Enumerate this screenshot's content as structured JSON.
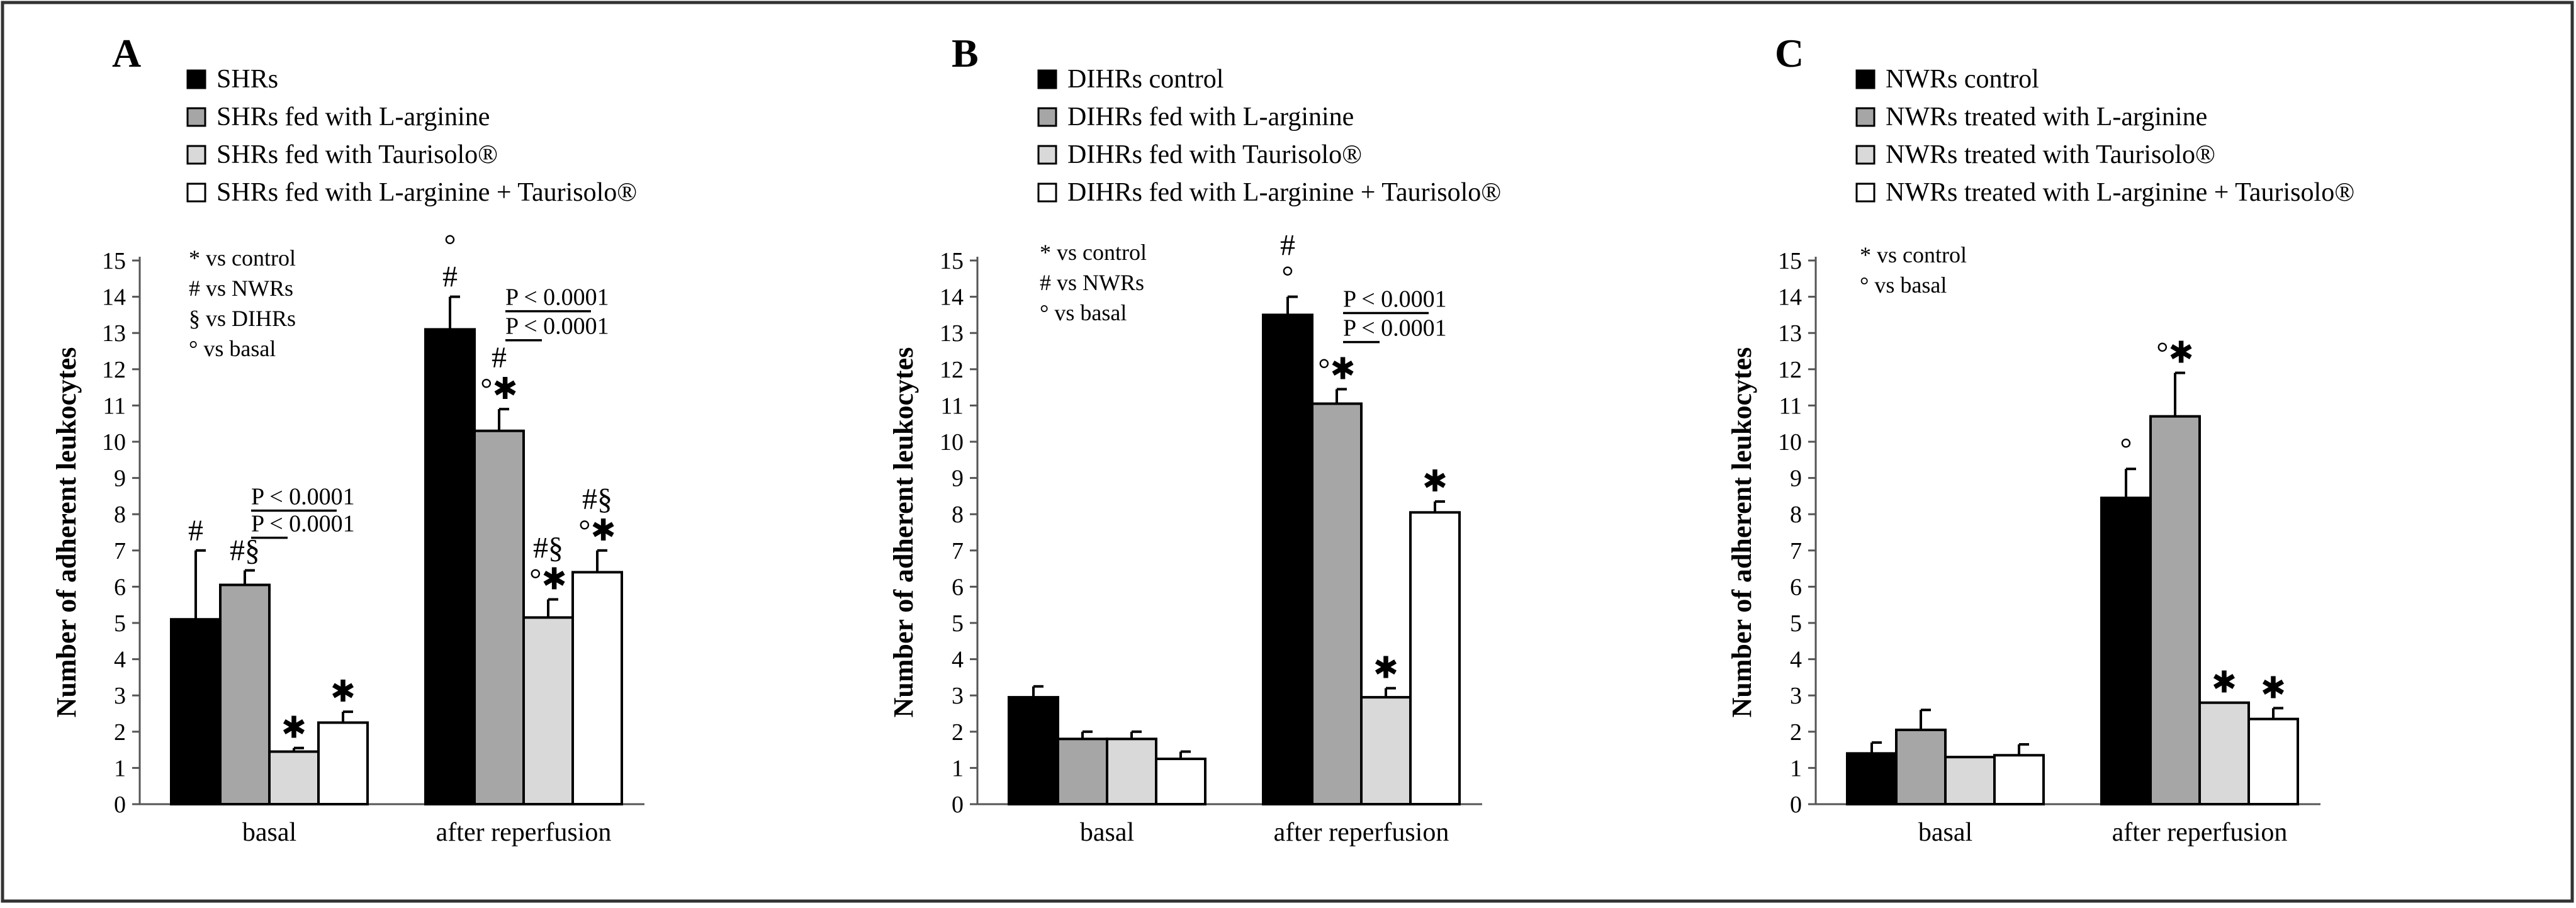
{
  "figure": {
    "colors": {
      "border": "#333333",
      "background": "#ffffff"
    }
  },
  "chart_data": [
    {
      "type": "bar",
      "panel": "A",
      "ylabel": "Number of adherent leukocytes",
      "ylim": [
        0,
        15
      ],
      "yticks": [
        0,
        1,
        2,
        3,
        4,
        5,
        6,
        7,
        8,
        9,
        10,
        11,
        12,
        13,
        14,
        15
      ],
      "categories": [
        "basal",
        "after reperfusion"
      ],
      "series": [
        {
          "name": "SHRs",
          "color": "#000000",
          "values": [
            5.1,
            13.1
          ],
          "errors": [
            1.9,
            0.9
          ],
          "annotations": [
            "#",
            "°\n#"
          ]
        },
        {
          "name": "SHRs fed with L-arginine",
          "color": "#a6a6a6",
          "values": [
            6.05,
            10.3
          ],
          "errors": [
            0.4,
            0.6
          ],
          "annotations": [
            "#§",
            "#\n°✱"
          ]
        },
        {
          "name": "SHRs fed with Taurisolo®",
          "color": "#d9d9d9",
          "values": [
            1.45,
            5.15
          ],
          "errors": [
            0.1,
            0.5
          ],
          "annotations": [
            "✱",
            "#§\n°✱"
          ]
        },
        {
          "name": "SHRs fed with L-arginine + Taurisolo®",
          "color": "#ffffff",
          "values": [
            2.25,
            6.4
          ],
          "errors": [
            0.3,
            0.6
          ],
          "annotations": [
            "✱",
            "#§\n°✱"
          ]
        }
      ],
      "notes": [
        "* vs control",
        "# vs NWRs",
        "§ vs DIHRs",
        "° vs basal"
      ],
      "pvalues": [
        {
          "label": "P < 0.0001",
          "category": 0,
          "from_series": 1,
          "to_series": 3,
          "y": 8.1
        },
        {
          "label": "P < 0.0001",
          "category": 0,
          "from_series": 1,
          "to_series": 2,
          "y": 7.35
        },
        {
          "label": "P < 0.0001",
          "category": 1,
          "from_series": 1,
          "to_series": 3,
          "y": 13.6
        },
        {
          "label": "P < 0.0001",
          "category": 1,
          "from_series": 1,
          "to_series": 2,
          "y": 12.8
        }
      ]
    },
    {
      "type": "bar",
      "panel": "B",
      "ylabel": "Number of adherent leukocytes",
      "ylim": [
        0,
        15
      ],
      "yticks": [
        0,
        1,
        2,
        3,
        4,
        5,
        6,
        7,
        8,
        9,
        10,
        11,
        12,
        13,
        14,
        15
      ],
      "categories": [
        "basal",
        "after reperfusion"
      ],
      "series": [
        {
          "name": "DIHRs control",
          "color": "#000000",
          "values": [
            2.95,
            13.5
          ],
          "errors": [
            0.3,
            0.5
          ],
          "annotations": [
            "",
            "#\n°"
          ]
        },
        {
          "name": "DIHRs fed with L-arginine",
          "color": "#a6a6a6",
          "values": [
            1.8,
            11.05
          ],
          "errors": [
            0.2,
            0.4
          ],
          "annotations": [
            "",
            "°✱"
          ]
        },
        {
          "name": "DIHRs fed with  Taurisolo®",
          "color": "#d9d9d9",
          "values": [
            1.8,
            2.95
          ],
          "errors": [
            0.2,
            0.25
          ],
          "annotations": [
            "",
            "✱"
          ]
        },
        {
          "name": "DIHRs fed with L-arginine  + Taurisolo®",
          "color": "#ffffff",
          "values": [
            1.25,
            8.05
          ],
          "errors": [
            0.2,
            0.3
          ],
          "annotations": [
            "",
            "✱"
          ]
        }
      ],
      "notes": [
        "* vs control",
        "# vs NWRs",
        "° vs basal"
      ],
      "pvalues": [
        {
          "label": "P < 0.0001",
          "category": 1,
          "from_series": 1,
          "to_series": 3,
          "y": 13.55
        },
        {
          "label": "P < 0.0001",
          "category": 1,
          "from_series": 1,
          "to_series": 2,
          "y": 12.75
        }
      ]
    },
    {
      "type": "bar",
      "panel": "C",
      "ylabel": "Number of adherent leukocytes",
      "ylim": [
        0,
        15
      ],
      "yticks": [
        0,
        1,
        2,
        3,
        4,
        5,
        6,
        7,
        8,
        9,
        10,
        11,
        12,
        13,
        14,
        15
      ],
      "categories": [
        "basal",
        "after reperfusion"
      ],
      "series": [
        {
          "name": "NWRs control",
          "color": "#000000",
          "values": [
            1.4,
            8.45
          ],
          "errors": [
            0.3,
            0.8
          ],
          "annotations": [
            "",
            "°"
          ]
        },
        {
          "name": "NWRs treated with L-arginine",
          "color": "#a6a6a6",
          "values": [
            2.05,
            10.7
          ],
          "errors": [
            0.55,
            1.2
          ],
          "annotations": [
            "",
            "°✱"
          ]
        },
        {
          "name": "NWRs treated with Taurisolo®",
          "color": "#d9d9d9",
          "values": [
            1.3,
            2.8
          ],
          "errors": [
            0,
            0
          ],
          "annotations": [
            "",
            "✱"
          ]
        },
        {
          "name": "NWRs treated with L-arginine + Taurisolo®",
          "color": "#ffffff",
          "values": [
            1.35,
            2.35
          ],
          "errors": [
            0.3,
            0.3
          ],
          "annotations": [
            "",
            "✱"
          ]
        }
      ],
      "notes": [
        "* vs control",
        "° vs basal"
      ],
      "pvalues": []
    }
  ]
}
